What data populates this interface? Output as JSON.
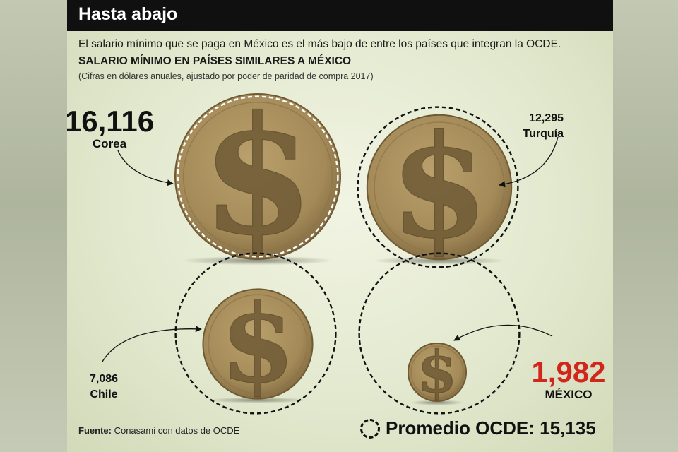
{
  "header": {
    "title": "Hasta abajo",
    "intro": "El salario mínimo que se paga en México es el más bajo de entre los países que integran la OCDE.",
    "subtitle": "SALARIO MÍNIMO EN PAÍSES SIMILARES A MÉXICO",
    "note": "(Cifras en dólares anuales, ajustado por poder de paridad de compra 2017)"
  },
  "chart_data": {
    "type": "bubble",
    "unit": "dólares anuales",
    "items": [
      {
        "country": "Corea",
        "value": 16116,
        "value_label": "16,116"
      },
      {
        "country": "Turquía",
        "value": 12295,
        "value_label": "12,295"
      },
      {
        "country": "Chile",
        "value": 7086,
        "value_label": "7,086"
      },
      {
        "country": "MÉXICO",
        "value": 1982,
        "value_label": "1,982"
      }
    ],
    "reference": {
      "label": "Promedio OCDE: 15,135",
      "value": 15135
    }
  },
  "footer": {
    "source_label": "Fuente:",
    "source_text": "Conasami con datos de OCDE"
  },
  "colors": {
    "coin": "#a88f5c",
    "highlight": "#d0261c",
    "text": "#111111"
  },
  "icons": [
    "dollar-sign-icon"
  ]
}
